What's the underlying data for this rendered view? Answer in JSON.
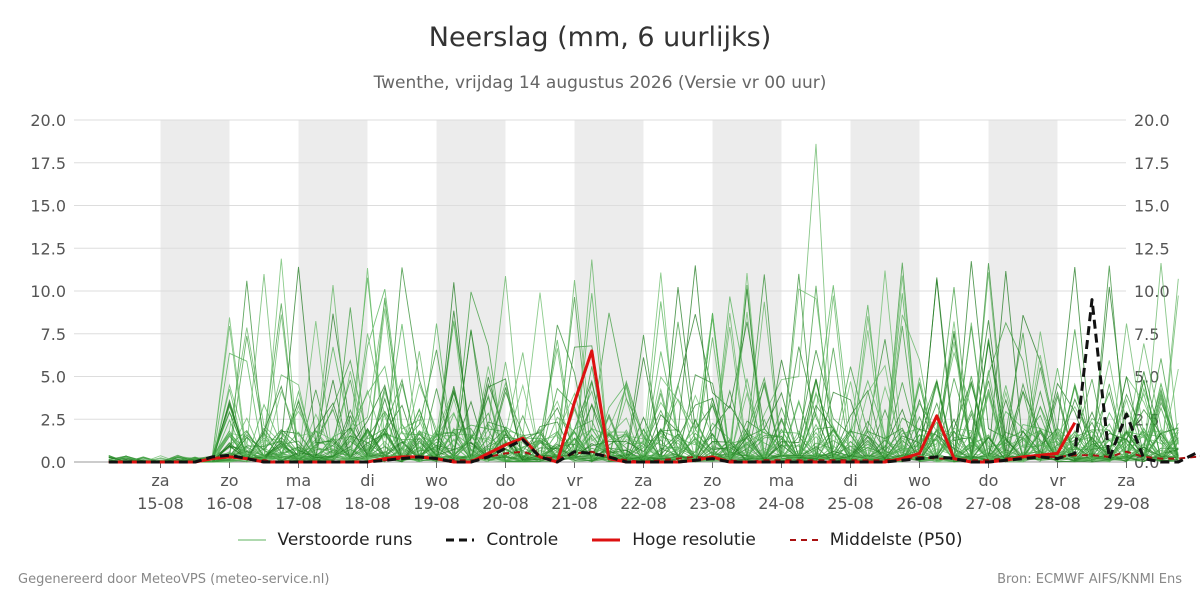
{
  "chart_data": {
    "type": "line",
    "title": "Neerslag (mm, 6 uurlijks)",
    "subtitle": "Twenthe, vrijdag 14 augustus 2026 (Versie vr 00 uur)",
    "x_days": [
      {
        "day": "za",
        "date": "15-08",
        "weekend": true
      },
      {
        "day": "zo",
        "date": "16-08",
        "weekend": false
      },
      {
        "day": "ma",
        "date": "17-08",
        "weekend": true
      },
      {
        "day": "di",
        "date": "18-08",
        "weekend": false
      },
      {
        "day": "wo",
        "date": "19-08",
        "weekend": true
      },
      {
        "day": "do",
        "date": "20-08",
        "weekend": false
      },
      {
        "day": "vr",
        "date": "21-08",
        "weekend": true
      },
      {
        "day": "za",
        "date": "22-08",
        "weekend": false
      },
      {
        "day": "zo",
        "date": "23-08",
        "weekend": true
      },
      {
        "day": "ma",
        "date": "24-08",
        "weekend": false
      },
      {
        "day": "di",
        "date": "25-08",
        "weekend": true
      },
      {
        "day": "wo",
        "date": "26-08",
        "weekend": false
      },
      {
        "day": "do",
        "date": "27-08",
        "weekend": true
      },
      {
        "day": "vr",
        "date": "28-08",
        "weekend": false
      },
      {
        "day": "za",
        "date": "29-08",
        "weekend": false
      }
    ],
    "x_range": [
      "14-08 06:00",
      "29-08 00:00"
    ],
    "ylim": [
      0,
      20
    ],
    "yticks": [
      "0.0",
      "2.5",
      "5.0",
      "7.5",
      "10.0",
      "12.5",
      "15.0",
      "17.5",
      "20.0"
    ],
    "grid": true,
    "legend_position": "bottom",
    "series": [
      {
        "name": "Controle",
        "color": "#111111",
        "style": "dashed",
        "x_start": "14-08 06:00",
        "step_hours": 6,
        "values": [
          0,
          0,
          0,
          0,
          0,
          0,
          0.3,
          0.4,
          0.2,
          0,
          0,
          0,
          0,
          0,
          0,
          0,
          0.1,
          0.2,
          0.3,
          0.2,
          0,
          0,
          0.3,
          0.8,
          1.3,
          0.3,
          0,
          0.6,
          0.5,
          0.3,
          0,
          0,
          0,
          0,
          0.1,
          0.2,
          0,
          0,
          0,
          0,
          0,
          0,
          0,
          0,
          0,
          0,
          0.1,
          0.2,
          0.3,
          0.2,
          0,
          0,
          0.1,
          0.2,
          0.3,
          0.2,
          0.5,
          9.5,
          0.2,
          2.8,
          0.2,
          0,
          0,
          0.5,
          0.2,
          0,
          0,
          0,
          0,
          0,
          0.5,
          3.7,
          0,
          1.5,
          3,
          0,
          0,
          0,
          0.8,
          0.1
        ]
      },
      {
        "name": "Hoge resolutie",
        "color": "#dd1111",
        "style": "solid",
        "x_start": "14-08 06:00",
        "step_hours": 6,
        "values": [
          0,
          0,
          0,
          0,
          0,
          0,
          0.2,
          0.3,
          0.2,
          0,
          0,
          0,
          0,
          0,
          0,
          0,
          0.2,
          0.3,
          0.3,
          0.2,
          0,
          0,
          0.5,
          1,
          1.4,
          0.3,
          0,
          3.5,
          6.5,
          0.2,
          0,
          0,
          0,
          0,
          0.1,
          0.3,
          0,
          0,
          0,
          0,
          0,
          0,
          0,
          0,
          0,
          0,
          0.2,
          0.5,
          2.7,
          0.2,
          0,
          0,
          0.1,
          0.3,
          0.4,
          0.5,
          2.3
        ]
      },
      {
        "name": "Middelste (P50)",
        "color": "#aa1111",
        "style": "dashed",
        "x_start": "14-08 06:00",
        "step_hours": 6,
        "values": [
          0,
          0,
          0,
          0,
          0,
          0,
          0.2,
          0.3,
          0.2,
          0.1,
          0,
          0,
          0,
          0,
          0,
          0,
          0.1,
          0.2,
          0.3,
          0.2,
          0.1,
          0.1,
          0.3,
          0.5,
          0.6,
          0.3,
          0.2,
          0.5,
          0.6,
          0.3,
          0.1,
          0,
          0.1,
          0.2,
          0.3,
          0.2,
          0.1,
          0,
          0.1,
          0.1,
          0.1,
          0.1,
          0.1,
          0.1,
          0.1,
          0.1,
          0.2,
          0.3,
          0.2,
          0.2,
          0.1,
          0.1,
          0.2,
          0.3,
          0.3,
          0.3,
          0.4,
          0.4,
          0.3,
          0.6,
          0.3,
          0.2,
          0.2,
          0.3,
          0.3,
          0.2,
          0.1,
          0.1,
          0.2,
          0.2,
          0.3,
          0.4,
          0.1,
          0.2,
          0.3,
          0.2,
          0.1,
          0.1,
          0.2,
          0.1
        ]
      },
      {
        "name": "Verstoorde runs",
        "color": "#3a9a3a",
        "style": "solid-thin",
        "count": 50
      }
    ]
  },
  "legend": [
    {
      "label": "Verstoorde runs",
      "color": "#5fb35f",
      "style": "thin"
    },
    {
      "label": "Controle",
      "color": "#111111",
      "style": "dashed"
    },
    {
      "label": "Hoge resolutie",
      "color": "#dd1111",
      "style": "solid"
    },
    {
      "label": "Middelste (P50)",
      "color": "#aa1111",
      "style": "dashed"
    }
  ],
  "footer": {
    "left": "Gegenereerd door MeteoVPS (meteo-service.nl)",
    "right": "Bron: ECMWF AIFS/KNMI Ens"
  }
}
